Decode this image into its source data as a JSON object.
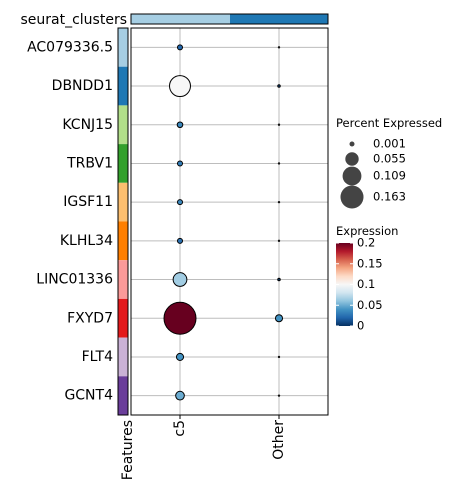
{
  "chart_data": {
    "type": "dotplot",
    "top_annotation": {
      "label": "seurat_clusters",
      "display_label": "seurat_clusters",
      "segments": [
        {
          "name": "c5",
          "color": "#a6cee3"
        },
        {
          "name": "Other",
          "color": "#1f78b4"
        }
      ]
    },
    "x_categories": [
      "c5",
      "Other"
    ],
    "y_categories": [
      "AC079336.5",
      "DBNDD1",
      "KCNJ15",
      "TRBV1",
      "IGSF11",
      "KLHL34",
      "LINC01336",
      "FXYD7",
      "FLT4",
      "GCNT4"
    ],
    "feature_colors": [
      "#a6cee3",
      "#1f78b4",
      "#b2df8a",
      "#33a02c",
      "#fdbf6f",
      "#ff7f00",
      "#fb9a99",
      "#e31a1c",
      "#cab2d6",
      "#6a3d9a"
    ],
    "left_annotation_label": "Features",
    "points": [
      {
        "feature": "AC079336.5",
        "cluster": "c5",
        "percent": 0.004,
        "expression": 0.02
      },
      {
        "feature": "AC079336.5",
        "cluster": "Other",
        "percent": 0.0005,
        "expression": 0.0
      },
      {
        "feature": "DBNDD1",
        "cluster": "c5",
        "percent": 0.07,
        "expression": 0.1
      },
      {
        "feature": "DBNDD1",
        "cluster": "Other",
        "percent": 0.001,
        "expression": 0.01
      },
      {
        "feature": "KCNJ15",
        "cluster": "c5",
        "percent": 0.005,
        "expression": 0.035
      },
      {
        "feature": "KCNJ15",
        "cluster": "Other",
        "percent": 0.0005,
        "expression": 0.0
      },
      {
        "feature": "TRBV1",
        "cluster": "c5",
        "percent": 0.004,
        "expression": 0.03
      },
      {
        "feature": "TRBV1",
        "cluster": "Other",
        "percent": 0.0005,
        "expression": 0.0
      },
      {
        "feature": "IGSF11",
        "cluster": "c5",
        "percent": 0.004,
        "expression": 0.035
      },
      {
        "feature": "IGSF11",
        "cluster": "Other",
        "percent": 0.0005,
        "expression": 0.0
      },
      {
        "feature": "KLHL34",
        "cluster": "c5",
        "percent": 0.004,
        "expression": 0.025
      },
      {
        "feature": "KLHL34",
        "cluster": "Other",
        "percent": 0.0005,
        "expression": 0.0
      },
      {
        "feature": "LINC01336",
        "cluster": "c5",
        "percent": 0.03,
        "expression": 0.065
      },
      {
        "feature": "LINC01336",
        "cluster": "Other",
        "percent": 0.001,
        "expression": 0.005
      },
      {
        "feature": "FXYD7",
        "cluster": "c5",
        "percent": 0.163,
        "expression": 0.2
      },
      {
        "feature": "FXYD7",
        "cluster": "Other",
        "percent": 0.008,
        "expression": 0.04
      },
      {
        "feature": "FLT4",
        "cluster": "c5",
        "percent": 0.008,
        "expression": 0.04
      },
      {
        "feature": "FLT4",
        "cluster": "Other",
        "percent": 0.0005,
        "expression": 0.0
      },
      {
        "feature": "GCNT4",
        "cluster": "c5",
        "percent": 0.012,
        "expression": 0.05
      },
      {
        "feature": "GCNT4",
        "cluster": "Other",
        "percent": 0.0005,
        "expression": 0.0
      }
    ],
    "size_legend": {
      "title": "Percent Expressed",
      "breaks": [
        0.001,
        0.055,
        0.109,
        0.163
      ],
      "labels": [
        "0.001",
        "0.055",
        "0.109",
        "0.163"
      ]
    },
    "color_legend": {
      "title": "Expression",
      "range": [
        0,
        0.2
      ],
      "breaks": [
        0,
        0.05,
        0.1,
        0.15,
        0.2
      ],
      "labels": [
        "0",
        "0.05",
        "0.1",
        "0.15",
        "0.2"
      ],
      "palette": [
        "#053061",
        "#2166ac",
        "#4393c3",
        "#92c5de",
        "#d1e5f0",
        "#f7f7f7",
        "#fddbc7",
        "#f4a582",
        "#d6604d",
        "#b2182b",
        "#67001f"
      ]
    },
    "grid": true
  }
}
